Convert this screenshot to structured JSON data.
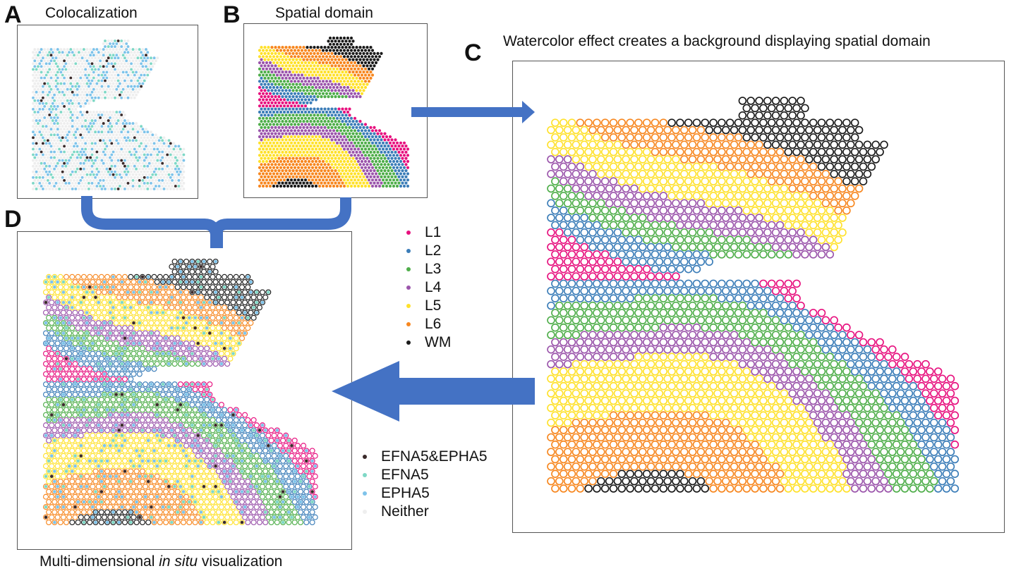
{
  "panels": {
    "a": {
      "label": "A",
      "title": "Colocalization"
    },
    "b": {
      "label": "B",
      "title": "Spatial domain"
    },
    "c": {
      "label": "C",
      "title": "Watercolor effect creates a background displaying spatial domain"
    },
    "d": {
      "label": "D",
      "caption_pre": "Multi-dimensional ",
      "caption_italic": "in situ",
      "caption_post": " visualization"
    }
  },
  "domain_legend": [
    {
      "label": "L1",
      "color": "#e7107e"
    },
    {
      "label": "L2",
      "color": "#3b7db8"
    },
    {
      "label": "L3",
      "color": "#4fae4a"
    },
    {
      "label": "L4",
      "color": "#9b55ab"
    },
    {
      "label": "L5",
      "color": "#ffe12a"
    },
    {
      "label": "L6",
      "color": "#f7871f"
    },
    {
      "label": "WM",
      "color": "#1a1a1a"
    }
  ],
  "coloc_legend": [
    {
      "label": "EFNA5&EPHA5",
      "color": "#3a2a2a"
    },
    {
      "label": "EFNA5",
      "color": "#7fd8c6"
    },
    {
      "label": "EPHA5",
      "color": "#7ec3ea"
    },
    {
      "label": "Neither",
      "color": "#eeeeee"
    }
  ],
  "colors": {
    "arrow": "#4472c4",
    "frame": "#555555"
  }
}
